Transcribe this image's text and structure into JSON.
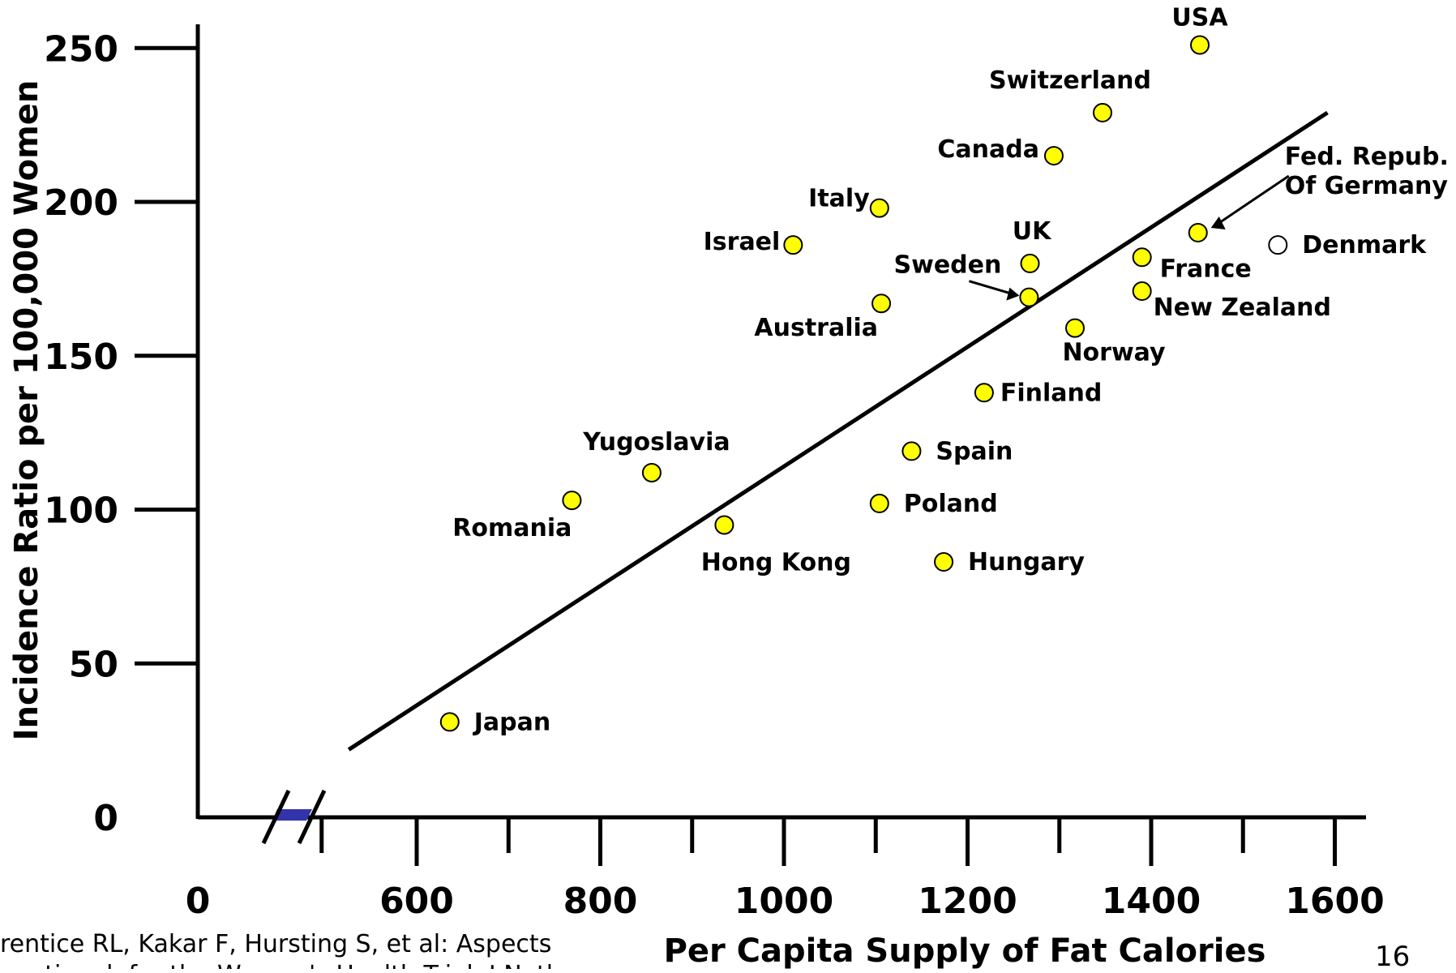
{
  "chart_data": {
    "type": "scatter",
    "title": "",
    "xlabel": "Per Capita Supply of Fat Calories",
    "ylabel": "Incidence Ratio per 100,000 Women",
    "x_ticks": [
      "0",
      "600",
      "800",
      "1000",
      "1200",
      "1400",
      "1600"
    ],
    "y_ticks": [
      "0",
      "50",
      "100",
      "150",
      "200",
      "250"
    ],
    "xlim": [
      0,
      1600
    ],
    "ylim": [
      0,
      250
    ],
    "axis_break": "x between 0 and 600",
    "grid": false,
    "points": [
      {
        "name": "USA",
        "x": 1453,
        "y": 251,
        "fill": "#ffff00"
      },
      {
        "name": "Switzerland",
        "x": 1347,
        "y": 229,
        "fill": "#ffff00"
      },
      {
        "name": "Canada",
        "x": 1294,
        "y": 215,
        "fill": "#ffff00"
      },
      {
        "name": "Italy",
        "x": 1104,
        "y": 198,
        "fill": "#ffff00"
      },
      {
        "name": "Israel",
        "x": 1010,
        "y": 186,
        "fill": "#ffff00"
      },
      {
        "name": "Fed. Repub. Of Germany",
        "x": 1451,
        "y": 190,
        "fill": "#ffff00"
      },
      {
        "name": "Denmark",
        "x": 1538,
        "y": 186,
        "fill": "#ffffff"
      },
      {
        "name": "France",
        "x": 1390,
        "y": 182,
        "fill": "#ffff00"
      },
      {
        "name": "UK",
        "x": 1268,
        "y": 180,
        "fill": "#ffff00"
      },
      {
        "name": "Sweden",
        "x": 1267,
        "y": 169,
        "fill": "#ffff00"
      },
      {
        "name": "New Zealand",
        "x": 1390,
        "y": 171,
        "fill": "#ffff00"
      },
      {
        "name": "Australia",
        "x": 1106,
        "y": 167,
        "fill": "#ffff00"
      },
      {
        "name": "Norway",
        "x": 1317,
        "y": 159,
        "fill": "#ffff00"
      },
      {
        "name": "Finland",
        "x": 1218,
        "y": 138,
        "fill": "#ffff00"
      },
      {
        "name": "Spain",
        "x": 1139,
        "y": 119,
        "fill": "#ffff00"
      },
      {
        "name": "Yugoslavia",
        "x": 856,
        "y": 112,
        "fill": "#ffff00"
      },
      {
        "name": "Romania",
        "x": 769,
        "y": 103,
        "fill": "#ffff00"
      },
      {
        "name": "Poland",
        "x": 1104,
        "y": 102,
        "fill": "#ffff00"
      },
      {
        "name": "Hong Kong",
        "x": 935,
        "y": 95,
        "fill": "#ffff00"
      },
      {
        "name": "Hungary",
        "x": 1174,
        "y": 83,
        "fill": "#ffff00"
      },
      {
        "name": "Japan",
        "x": 636,
        "y": 31,
        "fill": "#ffff00"
      }
    ],
    "regression_line": {
      "x1": 526,
      "y1": 22,
      "x2": 1592,
      "y2": 229
    }
  },
  "footer": {
    "citation_line1": "rentice RL, Kakar F, Hursting S, et al: Aspects of",
    "citation_line2": "ventional, for the Women's Health Trial, J Natl",
    "page_number": "16"
  }
}
